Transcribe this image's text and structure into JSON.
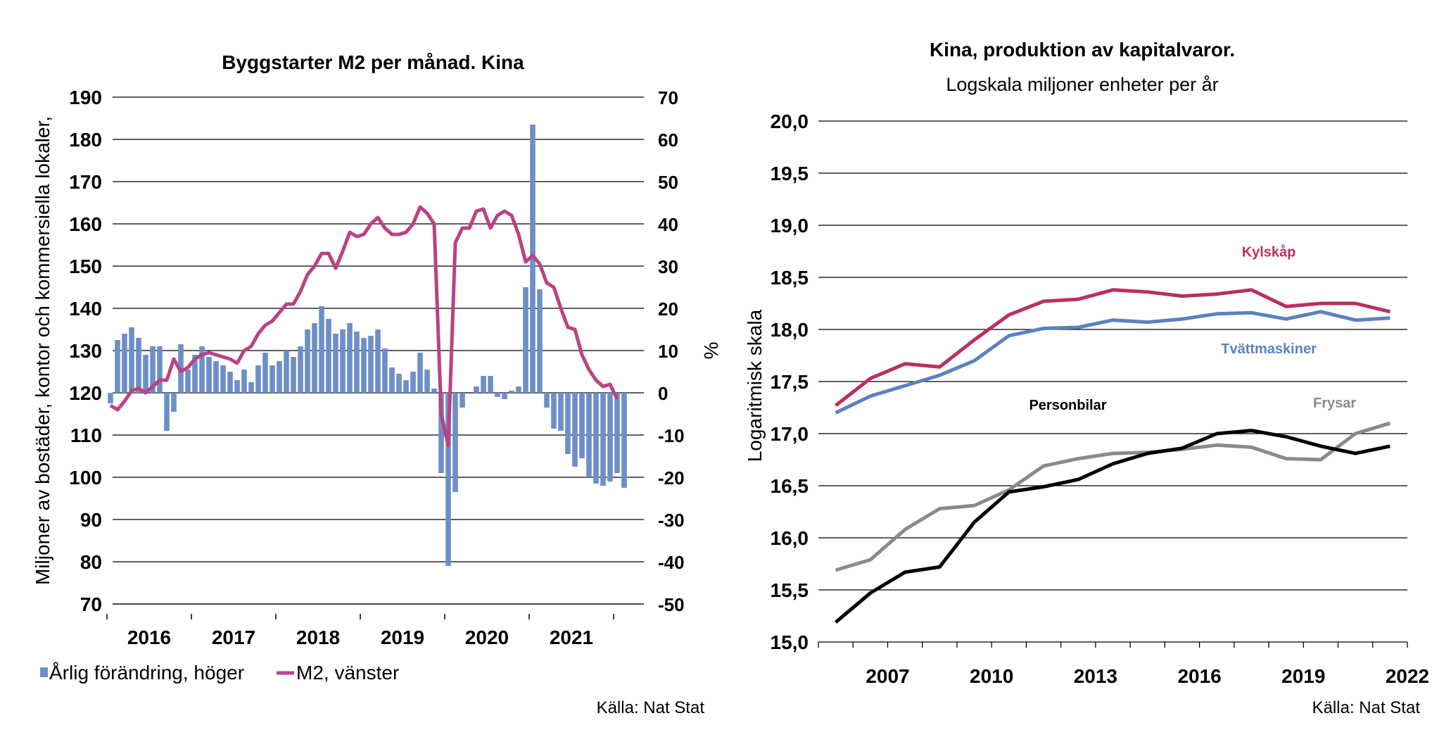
{
  "chart_data": [
    {
      "type": "bar+line",
      "title": "Byggstarter M2 per månad. Kina",
      "ylabel_left": "Miljoner av bostäder, kontor och kommersiella lokaler,",
      "ylabel_right": "%",
      "y_left_lim": [
        70,
        190
      ],
      "y_left_ticks": [
        "190",
        "180",
        "170",
        "160",
        "150",
        "140",
        "130",
        "120",
        "110",
        "100",
        "90",
        "80",
        "70"
      ],
      "y_right_lim": [
        -50,
        70
      ],
      "y_right_ticks": [
        "70",
        "60",
        "50",
        "40",
        "30",
        "20",
        "10",
        "0",
        "-10",
        "-20",
        "-30",
        "-40",
        "-50"
      ],
      "x_tick_labels": [
        "2016",
        "2017",
        "2018",
        "2019",
        "2020",
        "2021"
      ],
      "x_start_year": 2016,
      "months_per_year": 12,
      "grid": true,
      "source": "Källa: Nat Stat",
      "legend": {
        "placement": "bottom",
        "entries": [
          {
            "name": "Årlig förändring, höger",
            "symbol": "bar"
          },
          {
            "name": "M2, vänster",
            "symbol": "line"
          }
        ]
      },
      "colors": {
        "bars": "#6d8fc8",
        "line": "#b94384"
      },
      "series": [
        {
          "name": "Årlig förändring, höger",
          "kind": "bar",
          "axis": "right",
          "values": [
            -2.5,
            12.5,
            14,
            15.5,
            13,
            9,
            11,
            11,
            -9,
            -4.5,
            11.5,
            5.5,
            9,
            11,
            8.5,
            7.5,
            6.5,
            5,
            3,
            5.5,
            2.5,
            6.5,
            9.5,
            6.5,
            7.5,
            10,
            8.5,
            11,
            15,
            16.5,
            20.5,
            17.5,
            14,
            15,
            16.5,
            14.5,
            13,
            13.5,
            15,
            10.5,
            6,
            4.5,
            3,
            5,
            9.5,
            5.5,
            1,
            -19,
            -41,
            -23.5,
            -3.5,
            null,
            1.5,
            4,
            4,
            -1,
            -1.5,
            0.5,
            1.5,
            25,
            63.5,
            24.5,
            -3.5,
            -8.5,
            -9,
            -14.5,
            -17.5,
            -15.5,
            -20,
            -21.5,
            -22,
            -21,
            -19,
            -22.5
          ]
        },
        {
          "name": "M2, vänster",
          "kind": "line",
          "axis": "left",
          "values": [
            117,
            116,
            118,
            120.5,
            121,
            120,
            121.5,
            123,
            123,
            128,
            125,
            126,
            128,
            129,
            129.5,
            129,
            128.5,
            128,
            127,
            130,
            131,
            134,
            136,
            137,
            139,
            141,
            141,
            144,
            148,
            150,
            153,
            153,
            149.5,
            153.5,
            158,
            157,
            157.5,
            160,
            161.5,
            159,
            157.5,
            157.5,
            158,
            160,
            164,
            162.5,
            160,
            115,
            107.5,
            155.5,
            159,
            159,
            163,
            163.5,
            159,
            162,
            163,
            162,
            157.5,
            151,
            152.5,
            150.5,
            146,
            145,
            140,
            135.5,
            135,
            129,
            125.5,
            123,
            121.5,
            122,
            118.5
          ]
        }
      ]
    },
    {
      "type": "line",
      "title": "Kina, produktion av kapitalvaror.",
      "subtitle": "Logskala miljoner enheter per år",
      "ylabel": "Logaritmisk skala",
      "ylim": [
        15.0,
        20.0
      ],
      "y_ticks": [
        "20,0",
        "19,5",
        "19,0",
        "18,5",
        "18,0",
        "17,5",
        "17,0",
        "16,5",
        "16,0",
        "15,5",
        "15,0"
      ],
      "xlim": [
        2005,
        2022
      ],
      "x_ticks": [
        "2007",
        "2010",
        "2013",
        "2016",
        "2019",
        "2022"
      ],
      "x": [
        2005.5,
        2006.5,
        2007.5,
        2008.5,
        2009.5,
        2010.5,
        2011.5,
        2012.5,
        2013.5,
        2014.5,
        2015.5,
        2016.5,
        2017.5,
        2018.5,
        2019.5,
        2020.5,
        2021.5
      ],
      "grid": true,
      "source": "Källa: Nat Stat",
      "legend": {
        "placement": "inline-labels"
      },
      "series": [
        {
          "name": "Kylskåp",
          "color": "#b9305e",
          "values": [
            17.27,
            17.53,
            17.67,
            17.64,
            17.9,
            18.14,
            18.27,
            18.29,
            18.38,
            18.36,
            18.32,
            18.34,
            18.38,
            18.22,
            18.25,
            18.25,
            18.17
          ]
        },
        {
          "name": "Tvättmaskiner",
          "color": "#5b82bf",
          "values": [
            17.2,
            17.36,
            17.46,
            17.56,
            17.7,
            17.94,
            18.01,
            18.02,
            18.09,
            18.07,
            18.1,
            18.15,
            18.16,
            18.1,
            18.17,
            18.09,
            18.11
          ]
        },
        {
          "name": "Personbilar",
          "color": "#000000",
          "values": [
            15.19,
            15.47,
            15.67,
            15.72,
            16.15,
            16.44,
            16.49,
            16.56,
            16.71,
            16.81,
            16.86,
            17.0,
            17.03,
            16.97,
            16.88,
            16.81,
            16.88
          ]
        },
        {
          "name": "Frysar",
          "color": "#8a8a8a",
          "values": [
            15.69,
            15.79,
            16.08,
            16.28,
            16.31,
            16.46,
            16.69,
            16.76,
            16.81,
            16.82,
            16.85,
            16.89,
            16.87,
            16.76,
            16.75,
            17.0,
            17.1
          ]
        }
      ]
    }
  ]
}
